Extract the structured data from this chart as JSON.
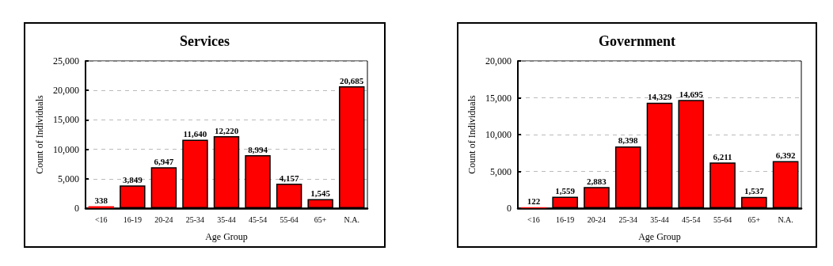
{
  "chart_data": [
    {
      "type": "bar",
      "title": "Services",
      "xlabel": "Age Group",
      "ylabel": "Count of Individuals",
      "categories": [
        "<16",
        "16-19",
        "20-24",
        "25-34",
        "35-44",
        "45-54",
        "55-64",
        "65+",
        "N.A."
      ],
      "values": [
        338,
        3849,
        6947,
        11640,
        12220,
        8994,
        4157,
        1545,
        20685
      ],
      "color": "#ff0000",
      "value_labels": [
        "338",
        "3,849",
        "6,947",
        "11,640",
        "12,220",
        "8,994",
        "4,157",
        "1,545",
        "20,685"
      ],
      "ylim": [
        0,
        25000
      ],
      "yticks": [
        0,
        {
          "value": 5000,
          "label": "5,000"
        },
        {
          "value": 10000,
          "label": "10,000"
        },
        {
          "value": 15000,
          "label": "15,000"
        },
        {
          "value": 20000,
          "label": "20,000"
        },
        {
          "value": 25000,
          "label": "25,000"
        }
      ],
      "grid": "y"
    },
    {
      "type": "bar",
      "title": "Government",
      "xlabel": "Age Group",
      "ylabel": "Count of Individuals",
      "categories": [
        "<16",
        "16-19",
        "20-24",
        "25-34",
        "35-44",
        "45-54",
        "55-64",
        "65+",
        "N.A."
      ],
      "values": [
        122,
        1559,
        2883,
        8398,
        14329,
        14695,
        6211,
        1537,
        6392
      ],
      "color": "#ff0000",
      "value_labels": [
        "122",
        "1,559",
        "2,883",
        "8,398",
        "14,329",
        "14,695",
        "6,211",
        "1,537",
        "6,392"
      ],
      "ylim": [
        0,
        20000
      ],
      "yticks": [
        0,
        {
          "value": 5000,
          "label": "5,000"
        },
        {
          "value": 10000,
          "label": "10,000"
        },
        {
          "value": 15000,
          "label": "15,000"
        },
        {
          "value": 20000,
          "label": "20,000"
        }
      ],
      "grid": "y"
    }
  ]
}
